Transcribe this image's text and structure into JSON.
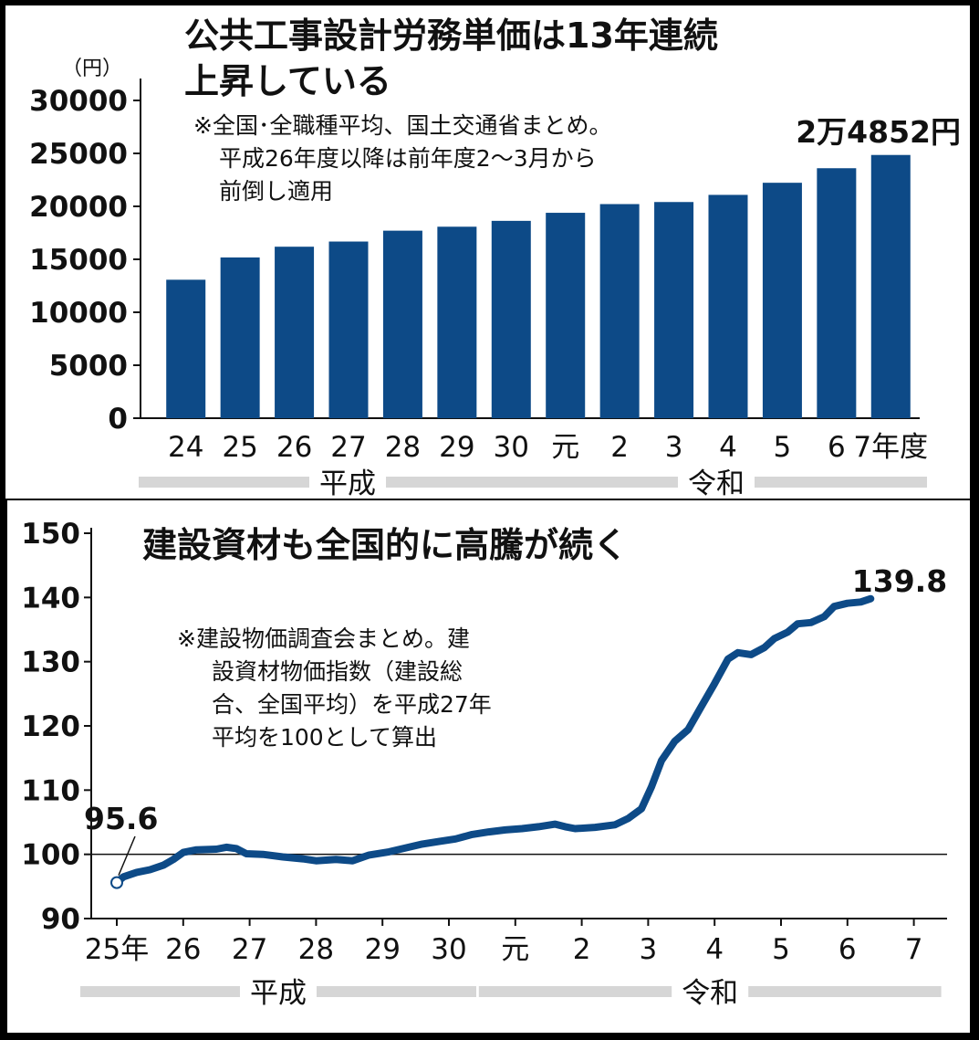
{
  "chart_data": [
    {
      "type": "bar",
      "title": "公共工事設計労務単価は13年連続",
      "title_line2": "上昇している",
      "note_lines": [
        "※全国･全職種平均、国土交通省まとめ。",
        "平成26年度以降は前年度2～3月から",
        "前倒し適用"
      ],
      "unit_label": "（円）",
      "callout": "2万4852円",
      "categories": [
        "24",
        "25",
        "26",
        "27",
        "28",
        "29",
        "30",
        "元",
        "2",
        "3",
        "4",
        "5",
        "6",
        "7年度"
      ],
      "values": [
        13072,
        15175,
        16190,
        16678,
        17704,
        18078,
        18632,
        19392,
        20214,
        20409,
        21084,
        22227,
        23600,
        24852
      ],
      "y_ticks": [
        "0",
        "5000",
        "10000",
        "15000",
        "20000",
        "25000",
        "30000"
      ],
      "ylim": [
        0,
        30000
      ],
      "eras": [
        {
          "label": "平成",
          "from": "24",
          "to": "30"
        },
        {
          "label": "令和",
          "from": "元",
          "to": "7年度"
        }
      ],
      "bar_color": "#0d4a87"
    },
    {
      "type": "line",
      "title": "建設資材も全国的に高騰が続く",
      "note_lines": [
        "※建設物価調査会まとめ。建",
        "設資材物価指数（建設総",
        "合、全国平均）を平成27年",
        "平均を100として算出"
      ],
      "start_label": "95.6",
      "end_label": "139.8",
      "x_ticks": [
        "25年",
        "26",
        "27",
        "28",
        "29",
        "30",
        "元",
        "2",
        "3",
        "4",
        "5",
        "6",
        "7"
      ],
      "y_ticks": [
        "90",
        "100",
        "110",
        "120",
        "130",
        "140",
        "150"
      ],
      "ylim": [
        90,
        150
      ],
      "reference_line": 100,
      "eras": [
        {
          "label": "平成",
          "from": "25年",
          "to": "30"
        },
        {
          "label": "令和",
          "from": "元",
          "to": "7"
        }
      ],
      "line_color": "#0d4a87",
      "series": [
        {
          "points": [
            [
              0,
              95.6
            ],
            [
              0.1,
              96.5
            ],
            [
              0.3,
              97.2
            ],
            [
              0.5,
              97.6
            ],
            [
              0.7,
              98.3
            ],
            [
              0.85,
              99.2
            ],
            [
              1.0,
              100.3
            ],
            [
              1.2,
              100.7
            ],
            [
              1.5,
              100.8
            ],
            [
              1.65,
              101.1
            ],
            [
              1.8,
              100.9
            ],
            [
              1.95,
              100.1
            ],
            [
              2.2,
              100.0
            ],
            [
              2.5,
              99.6
            ],
            [
              2.8,
              99.3
            ],
            [
              3.0,
              99.0
            ],
            [
              3.3,
              99.2
            ],
            [
              3.55,
              99.0
            ],
            [
              3.8,
              99.9
            ],
            [
              4.1,
              100.4
            ],
            [
              4.35,
              101.0
            ],
            [
              4.6,
              101.6
            ],
            [
              4.85,
              102.0
            ],
            [
              5.1,
              102.4
            ],
            [
              5.35,
              103.1
            ],
            [
              5.6,
              103.5
            ],
            [
              5.85,
              103.8
            ],
            [
              6.1,
              104.0
            ],
            [
              6.35,
              104.3
            ],
            [
              6.6,
              104.7
            ],
            [
              6.75,
              104.3
            ],
            [
              6.9,
              104.0
            ],
            [
              7.2,
              104.2
            ],
            [
              7.5,
              104.6
            ],
            [
              7.7,
              105.6
            ],
            [
              7.9,
              107.1
            ],
            [
              8.05,
              110.5
            ],
            [
              8.2,
              114.6
            ],
            [
              8.4,
              117.6
            ],
            [
              8.6,
              119.4
            ],
            [
              8.8,
              123.0
            ],
            [
              9.0,
              126.6
            ],
            [
              9.2,
              130.4
            ],
            [
              9.35,
              131.4
            ],
            [
              9.55,
              131.1
            ],
            [
              9.75,
              132.2
            ],
            [
              9.9,
              133.6
            ],
            [
              10.1,
              134.6
            ],
            [
              10.25,
              135.9
            ],
            [
              10.45,
              136.1
            ],
            [
              10.65,
              137.0
            ],
            [
              10.8,
              138.6
            ],
            [
              11.0,
              139.1
            ],
            [
              11.2,
              139.3
            ],
            [
              11.35,
              139.8
            ]
          ]
        }
      ]
    }
  ]
}
